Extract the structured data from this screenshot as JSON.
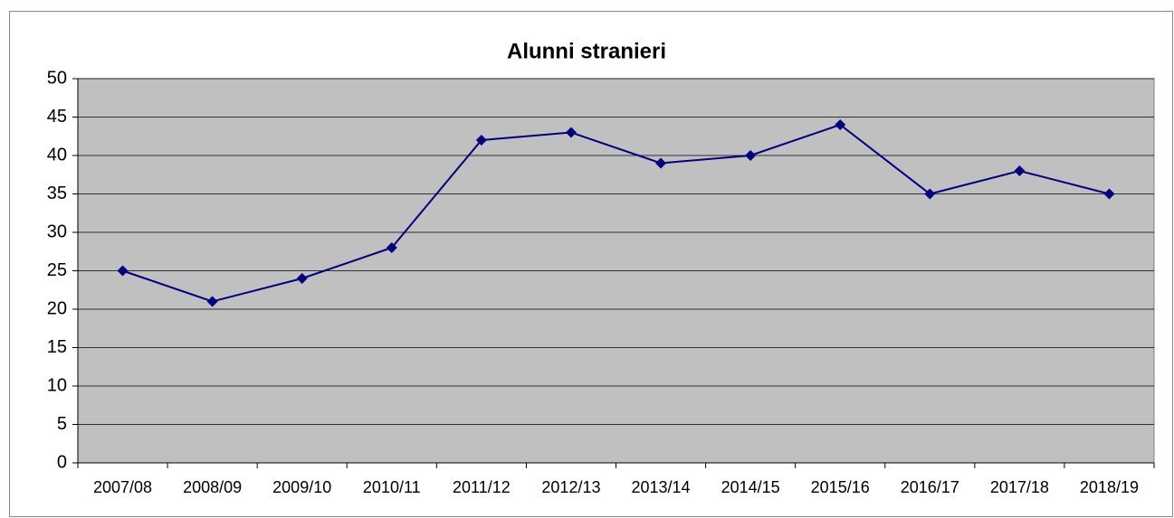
{
  "chart_data": {
    "type": "line",
    "title": "Alunni stranieri",
    "categories": [
      "2007/08",
      "2008/09",
      "2009/10",
      "2010/11",
      "2011/12",
      "2012/13",
      "2013/14",
      "2014/15",
      "2015/16",
      "2016/17",
      "2017/18",
      "2018/19"
    ],
    "values": [
      25,
      21,
      24,
      28,
      42,
      43,
      39,
      40,
      44,
      35,
      38,
      35
    ],
    "color": "#000080",
    "ylim": [
      0,
      50
    ],
    "yticks": [
      0,
      5,
      10,
      15,
      20,
      25,
      30,
      35,
      40,
      45,
      50
    ],
    "grid": true
  }
}
